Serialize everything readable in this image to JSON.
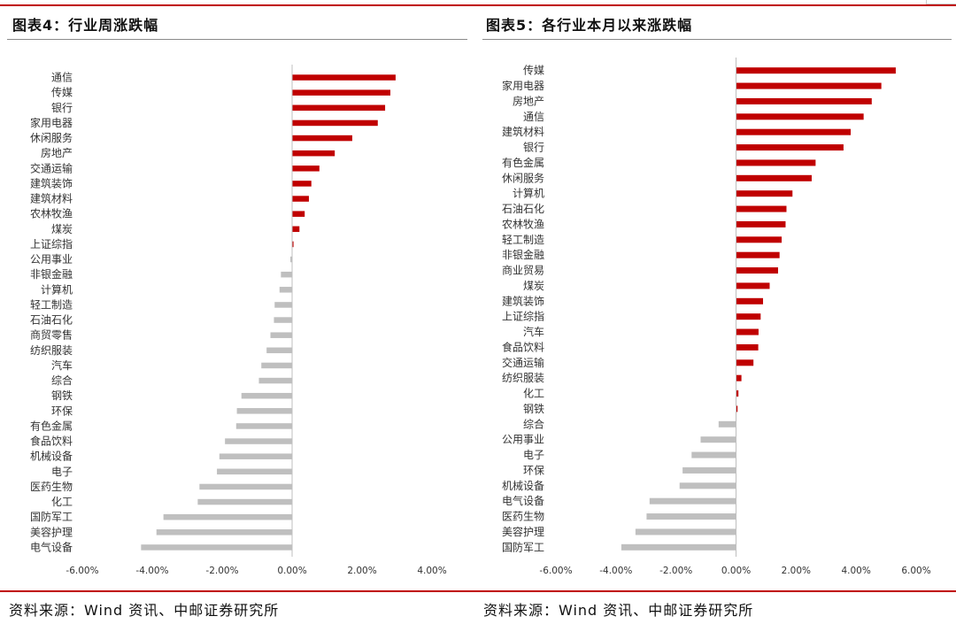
{
  "left": {
    "title": "图表4：行业周涨跌幅",
    "source": "资料来源：Wind 资讯、中邮证券研究所"
  },
  "right": {
    "title": "图表5：各行业本月以来涨跌幅",
    "source": "资料来源：Wind 资讯、中邮证券研究所"
  },
  "colors": {
    "positive": "#c00000",
    "negative": "#bfbfbf",
    "accent": "#c00000"
  },
  "chart_data": [
    {
      "type": "bar",
      "orientation": "horizontal",
      "xlim": [
        -0.06,
        0.04
      ],
      "ticks": [
        -0.06,
        -0.04,
        -0.02,
        0.0,
        0.02,
        0.04
      ],
      "tick_labels": [
        "-6.00%",
        "-4.00%",
        "-2.00%",
        "0.00%",
        "2.00%",
        "4.00%"
      ],
      "grid": false,
      "legend": "none",
      "categories": [
        "通信",
        "传媒",
        "银行",
        "家用电器",
        "休闲服务",
        "房地产",
        "交通运输",
        "建筑装饰",
        "建筑材料",
        "农林牧渔",
        "煤炭",
        "上证综指",
        "公用事业",
        "非银金融",
        "计算机",
        "轻工制造",
        "石油石化",
        "商贸零售",
        "纺织服装",
        "汽车",
        "综合",
        "钢铁",
        "环保",
        "有色金属",
        "食品饮料",
        "机械设备",
        "电子",
        "医药生物",
        "化工",
        "国防军工",
        "美容护理",
        "电气设备"
      ],
      "values": [
        0.0296,
        0.0281,
        0.0266,
        0.0245,
        0.0172,
        0.0122,
        0.0078,
        0.0055,
        0.0048,
        0.0036,
        0.0021,
        0.0004,
        -0.0005,
        -0.0032,
        -0.0036,
        -0.005,
        -0.0052,
        -0.0062,
        -0.0073,
        -0.0088,
        -0.0095,
        -0.0145,
        -0.0158,
        -0.016,
        -0.0192,
        -0.0208,
        -0.0215,
        -0.0265,
        -0.027,
        -0.0368,
        -0.0388,
        -0.0432
      ]
    },
    {
      "type": "bar",
      "orientation": "horizontal",
      "xlim": [
        -0.06,
        0.06
      ],
      "ticks": [
        -0.06,
        -0.04,
        -0.02,
        0.0,
        0.02,
        0.04,
        0.06
      ],
      "tick_labels": [
        "-6.00%",
        "-4.00%",
        "-2.00%",
        "0.00%",
        "2.00%",
        "4.00%",
        "6.00%"
      ],
      "grid": false,
      "legend": "none",
      "categories": [
        "传媒",
        "家用电器",
        "房地产",
        "通信",
        "建筑材料",
        "银行",
        "有色金属",
        "休闲服务",
        "计算机",
        "石油石化",
        "农林牧渔",
        "轻工制造",
        "非银金融",
        "商业贸易",
        "煤炭",
        "建筑装饰",
        "上证综指",
        "汽车",
        "食品饮料",
        "交通运输",
        "纺织服装",
        "化工",
        "钢铁",
        "综合",
        "公用事业",
        "电子",
        "环保",
        "机械设备",
        "电气设备",
        "医药生物",
        "美容护理",
        "国防军工"
      ],
      "values": [
        0.0532,
        0.0484,
        0.0452,
        0.0425,
        0.0382,
        0.0358,
        0.0265,
        0.0252,
        0.0188,
        0.0168,
        0.0165,
        0.0152,
        0.0145,
        0.014,
        0.0112,
        0.009,
        0.0082,
        0.0075,
        0.0074,
        0.0058,
        0.0018,
        0.0008,
        0.0005,
        -0.0058,
        -0.0118,
        -0.0148,
        -0.0178,
        -0.0188,
        -0.0288,
        -0.0298,
        -0.0335,
        -0.0382
      ]
    }
  ]
}
